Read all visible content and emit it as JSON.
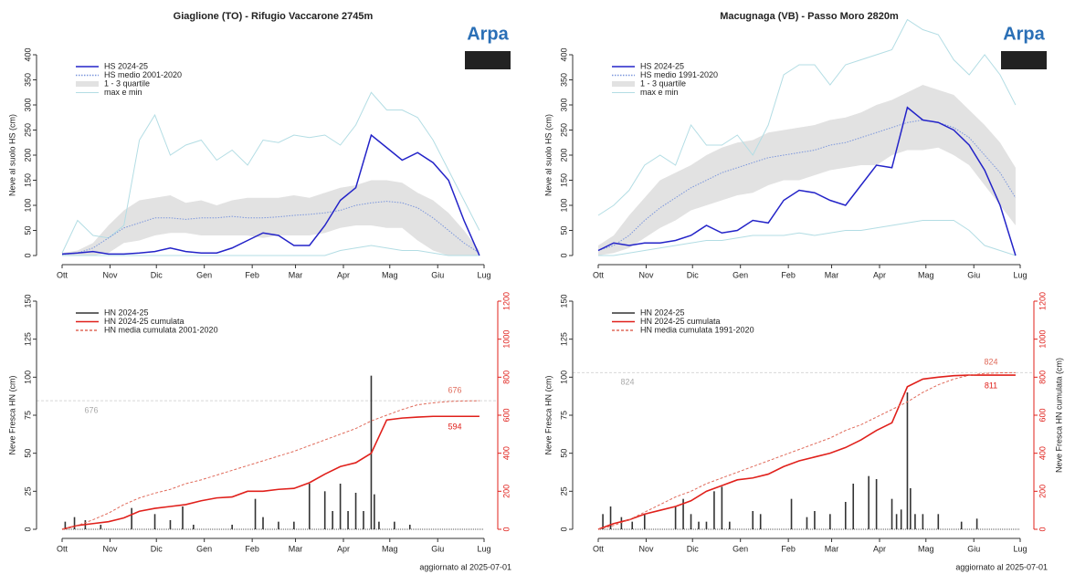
{
  "logo_text": "Arpa",
  "chart_data": [
    {
      "type": "line",
      "title": "Giaglione (TO) - Rifugio Vaccarone 2745m",
      "ylabel": "Neve al suolo HS (cm)",
      "xlim": [
        0,
        273
      ],
      "xticks": [
        {
          "value": 0,
          "label": "Ott"
        },
        {
          "value": 31,
          "label": "Nov"
        },
        {
          "value": 61,
          "label": "Dic"
        },
        {
          "value": 92,
          "label": "Gen"
        },
        {
          "value": 123,
          "label": "Feb"
        },
        {
          "value": 151,
          "label": "Mar"
        },
        {
          "value": 182,
          "label": "Apr"
        },
        {
          "value": 212,
          "label": "Mag"
        },
        {
          "value": 243,
          "label": "Giu"
        },
        {
          "value": 273,
          "label": "Lug"
        }
      ],
      "ylim": [
        0,
        400
      ],
      "yticks": [
        0,
        50,
        100,
        150,
        200,
        250,
        300,
        350,
        400
      ],
      "x": [
        0,
        10,
        20,
        30,
        40,
        50,
        60,
        70,
        80,
        90,
        100,
        110,
        120,
        130,
        140,
        150,
        160,
        170,
        180,
        190,
        200,
        210,
        220,
        230,
        240,
        250,
        260,
        270
      ],
      "series": [
        {
          "name": "HS 2024-25",
          "color": "#2323c8",
          "values": [
            3,
            5,
            8,
            3,
            3,
            5,
            8,
            15,
            8,
            5,
            5,
            15,
            30,
            45,
            40,
            20,
            20,
            60,
            110,
            135,
            240,
            215,
            190,
            205,
            185,
            150,
            70,
            0
          ]
        },
        {
          "name": "HS medio 2001-2020",
          "color": "#7b96dc",
          "style": "dotted",
          "values": [
            2,
            5,
            15,
            35,
            55,
            65,
            75,
            75,
            72,
            75,
            75,
            78,
            75,
            75,
            77,
            80,
            82,
            85,
            90,
            100,
            105,
            108,
            105,
            95,
            75,
            50,
            25,
            5
          ]
        }
      ],
      "band": {
        "name": "1 - 3 quartile",
        "color": "#e2e2e2",
        "lower": [
          0,
          0,
          0,
          5,
          25,
          30,
          40,
          45,
          45,
          40,
          40,
          40,
          40,
          35,
          40,
          40,
          40,
          45,
          55,
          60,
          60,
          55,
          55,
          30,
          10,
          0,
          0,
          0
        ],
        "upper": [
          5,
          10,
          25,
          60,
          90,
          110,
          115,
          120,
          105,
          110,
          100,
          110,
          115,
          115,
          115,
          120,
          115,
          125,
          135,
          140,
          150,
          150,
          145,
          125,
          110,
          85,
          50,
          10
        ]
      },
      "range": {
        "name": "max e min",
        "color": "#b3dde4",
        "max": [
          5,
          70,
          40,
          35,
          60,
          230,
          280,
          200,
          220,
          230,
          190,
          210,
          180,
          230,
          225,
          240,
          235,
          240,
          220,
          260,
          325,
          290,
          290,
          275,
          230,
          170,
          110,
          50
        ],
        "min": [
          0,
          0,
          0,
          0,
          0,
          0,
          0,
          0,
          0,
          0,
          0,
          0,
          0,
          0,
          0,
          0,
          0,
          0,
          10,
          15,
          20,
          15,
          10,
          10,
          5,
          0,
          0,
          0
        ]
      }
    },
    {
      "type": "combo",
      "ylabel": "Neve Fresca HN (cm)",
      "note": "aggiornato al  2025-07-01",
      "xlim": [
        0,
        273
      ],
      "xticks": [
        {
          "value": 0,
          "label": "Ott"
        },
        {
          "value": 31,
          "label": "Nov"
        },
        {
          "value": 61,
          "label": "Dic"
        },
        {
          "value": 92,
          "label": "Gen"
        },
        {
          "value": 123,
          "label": "Feb"
        },
        {
          "value": 151,
          "label": "Mar"
        },
        {
          "value": 182,
          "label": "Apr"
        },
        {
          "value": 212,
          "label": "Mag"
        },
        {
          "value": 243,
          "label": "Giu"
        },
        {
          "value": 273,
          "label": "Lug"
        }
      ],
      "ylim": [
        0,
        150
      ],
      "yticks": [
        0,
        25,
        50,
        75,
        100,
        125,
        150
      ],
      "y2lim": [
        0,
        1200
      ],
      "y2ticks": [
        0,
        200,
        400,
        600,
        800,
        1000,
        1200
      ],
      "x": [
        0,
        10,
        20,
        30,
        40,
        50,
        60,
        70,
        80,
        90,
        100,
        110,
        120,
        130,
        140,
        150,
        160,
        170,
        180,
        190,
        200,
        210,
        220,
        230,
        240,
        250,
        260,
        270
      ],
      "bars": {
        "name": "HN 2024-25",
        "color": "#333333",
        "x": [
          2,
          8,
          15,
          25,
          45,
          60,
          70,
          78,
          85,
          110,
          125,
          130,
          140,
          150,
          160,
          170,
          175,
          180,
          185,
          190,
          195,
          200,
          202,
          205,
          215,
          225
        ],
        "values": [
          5,
          8,
          6,
          3,
          14,
          10,
          6,
          15,
          3,
          3,
          20,
          8,
          5,
          5,
          30,
          25,
          12,
          30,
          12,
          24,
          12,
          101,
          23,
          5,
          5,
          3
        ]
      },
      "series": [
        {
          "name": "HN 2024-25 cumulata",
          "color": "#e0201b",
          "axis": "y2",
          "values": [
            0,
            20,
            30,
            40,
            60,
            95,
            110,
            120,
            130,
            150,
            165,
            170,
            200,
            200,
            210,
            215,
            245,
            290,
            330,
            350,
            400,
            575,
            585,
            590,
            594,
            594,
            594,
            594
          ]
        },
        {
          "name": "HN media cumulata 2001-2020",
          "color": "#e06a5a",
          "axis": "y2",
          "style": "dashed",
          "values": [
            0,
            20,
            50,
            85,
            130,
            165,
            190,
            210,
            240,
            260,
            285,
            310,
            335,
            360,
            385,
            410,
            440,
            470,
            500,
            530,
            570,
            600,
            630,
            655,
            665,
            672,
            675,
            676
          ]
        }
      ]
    },
    {
      "type": "line",
      "title": "Macugnaga (VB) - Passo Moro 2820m",
      "ylabel": "Neve al suolo HS (cm)",
      "xlim": [
        0,
        273
      ],
      "xticks": [
        {
          "value": 0,
          "label": "Ott"
        },
        {
          "value": 31,
          "label": "Nov"
        },
        {
          "value": 61,
          "label": "Dic"
        },
        {
          "value": 92,
          "label": "Gen"
        },
        {
          "value": 123,
          "label": "Feb"
        },
        {
          "value": 151,
          "label": "Mar"
        },
        {
          "value": 182,
          "label": "Apr"
        },
        {
          "value": 212,
          "label": "Mag"
        },
        {
          "value": 243,
          "label": "Giu"
        },
        {
          "value": 273,
          "label": "Lug"
        }
      ],
      "ylim": [
        0,
        400
      ],
      "yticks": [
        0,
        50,
        100,
        150,
        200,
        250,
        300,
        350,
        400
      ],
      "x": [
        0,
        10,
        20,
        30,
        40,
        50,
        60,
        70,
        80,
        90,
        100,
        110,
        120,
        130,
        140,
        150,
        160,
        170,
        180,
        190,
        200,
        210,
        220,
        230,
        240,
        250,
        260,
        270
      ],
      "series": [
        {
          "name": "HS 2024-25",
          "color": "#2323c8",
          "values": [
            10,
            25,
            20,
            25,
            25,
            30,
            40,
            60,
            45,
            50,
            70,
            65,
            110,
            130,
            125,
            110,
            100,
            140,
            180,
            175,
            295,
            270,
            265,
            250,
            220,
            170,
            100,
            0
          ]
        },
        {
          "name": "HS medio 1991-2020",
          "color": "#7b96dc",
          "style": "dotted",
          "values": [
            10,
            20,
            40,
            70,
            95,
            115,
            135,
            150,
            165,
            175,
            185,
            195,
            200,
            205,
            210,
            220,
            225,
            235,
            245,
            255,
            265,
            270,
            265,
            255,
            235,
            200,
            165,
            115
          ]
        }
      ],
      "band": {
        "name": "1 - 3 quartile",
        "color": "#e2e2e2",
        "lower": [
          0,
          5,
          15,
          35,
          55,
          70,
          90,
          100,
          110,
          120,
          125,
          140,
          150,
          150,
          160,
          170,
          175,
          180,
          180,
          200,
          210,
          210,
          215,
          200,
          180,
          140,
          100,
          60
        ],
        "upper": [
          20,
          40,
          80,
          115,
          150,
          165,
          180,
          200,
          215,
          225,
          230,
          245,
          250,
          255,
          260,
          270,
          275,
          285,
          300,
          310,
          325,
          340,
          330,
          320,
          290,
          260,
          225,
          175
        ]
      },
      "range": {
        "name": "max e min",
        "color": "#b3dde4",
        "max": [
          80,
          100,
          130,
          180,
          200,
          180,
          260,
          220,
          220,
          240,
          200,
          260,
          360,
          380,
          380,
          340,
          380,
          390,
          400,
          410,
          470,
          450,
          440,
          390,
          360,
          400,
          360,
          300
        ],
        "min": [
          0,
          0,
          5,
          10,
          15,
          20,
          25,
          30,
          30,
          35,
          40,
          40,
          40,
          45,
          40,
          45,
          50,
          50,
          55,
          60,
          65,
          70,
          70,
          70,
          50,
          20,
          10,
          0
        ]
      }
    },
    {
      "type": "combo",
      "ylabel": "Neve Fresca HN (cm)",
      "y2label": "Neve Fresca HN cumulata (cm)",
      "note": "aggiornato al  2025-07-01",
      "xlim": [
        0,
        273
      ],
      "xticks": [
        {
          "value": 0,
          "label": "Ott"
        },
        {
          "value": 31,
          "label": "Nov"
        },
        {
          "value": 61,
          "label": "Dic"
        },
        {
          "value": 92,
          "label": "Gen"
        },
        {
          "value": 123,
          "label": "Feb"
        },
        {
          "value": 151,
          "label": "Mar"
        },
        {
          "value": 182,
          "label": "Apr"
        },
        {
          "value": 212,
          "label": "Mag"
        },
        {
          "value": 243,
          "label": "Giu"
        },
        {
          "value": 273,
          "label": "Lug"
        }
      ],
      "ylim": [
        0,
        150
      ],
      "yticks": [
        0,
        25,
        50,
        75,
        100,
        125,
        150
      ],
      "y2lim": [
        0,
        1200
      ],
      "y2ticks": [
        0,
        200,
        400,
        600,
        800,
        1000,
        1200
      ],
      "x": [
        0,
        10,
        20,
        30,
        40,
        50,
        60,
        70,
        80,
        90,
        100,
        110,
        120,
        130,
        140,
        150,
        160,
        170,
        180,
        190,
        200,
        210,
        220,
        230,
        240,
        250,
        260,
        270
      ],
      "bars": {
        "name": "HN 2024-25",
        "color": "#333333",
        "x": [
          3,
          8,
          15,
          22,
          30,
          50,
          55,
          60,
          65,
          70,
          75,
          80,
          85,
          100,
          105,
          125,
          135,
          140,
          150,
          160,
          165,
          175,
          180,
          190,
          193,
          196,
          200,
          202,
          205,
          210,
          220,
          235,
          245
        ],
        "values": [
          10,
          15,
          8,
          5,
          10,
          15,
          20,
          10,
          5,
          5,
          25,
          28,
          5,
          12,
          10,
          20,
          8,
          12,
          10,
          18,
          30,
          35,
          33,
          20,
          10,
          13,
          90,
          27,
          10,
          10,
          10,
          5,
          7
        ]
      },
      "series": [
        {
          "name": "HN 2024-25 cumulata",
          "color": "#e0201b",
          "axis": "y2",
          "values": [
            0,
            30,
            50,
            80,
            100,
            120,
            150,
            200,
            230,
            260,
            270,
            290,
            330,
            360,
            380,
            400,
            430,
            470,
            520,
            560,
            750,
            790,
            800,
            808,
            811,
            811,
            811,
            811
          ]
        },
        {
          "name": "HN media cumulata 1991-2020",
          "color": "#e06a5a",
          "axis": "y2",
          "style": "dashed",
          "values": [
            0,
            20,
            50,
            90,
            130,
            170,
            200,
            240,
            270,
            300,
            330,
            360,
            390,
            420,
            450,
            480,
            520,
            550,
            590,
            630,
            670,
            720,
            760,
            790,
            810,
            820,
            823,
            824
          ]
        }
      ]
    }
  ]
}
